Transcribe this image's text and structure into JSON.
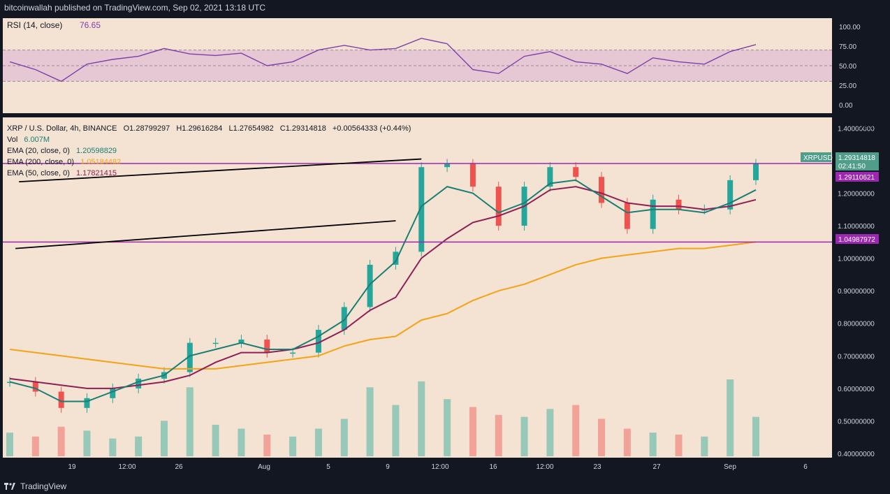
{
  "header": {
    "publisher_text": "bitcoinwallah published on TradingView.com, Sep 02, 2021 13:18 UTC"
  },
  "footer": {
    "brand": "TradingView"
  },
  "colors": {
    "background": "#f4e3d2",
    "frame": "#131722",
    "rsi_line": "#7e3fa8",
    "rsi_band": "#e6c8d4",
    "ema20": "#1b7d73",
    "ema200": "#f5a316",
    "ema50": "#8e1f57",
    "candle_up": "#26a69a",
    "candle_down": "#ef5350",
    "level_line": "#9c27b0",
    "channel_line": "#000000"
  },
  "rsi": {
    "label": "RSI (14, close)",
    "value": "76.65",
    "axis_ticks": [
      "100.00",
      "75.00",
      "50.00",
      "25.00",
      "0.00"
    ],
    "band": [
      30,
      70
    ],
    "range": [
      0,
      100
    ]
  },
  "price_legend": {
    "symbol": "XRP / U.S. Dollar, 4h, BINANCE",
    "open": "O1.28799297",
    "high": "H1.29616284",
    "low": "L1.27654982",
    "close": "C1.29314818",
    "change": "+0.00564333 (+0.44%)",
    "vol_label": "Vol",
    "vol_value": "6.007M",
    "ema20_label": "EMA (20, close, 0)",
    "ema20_value": "1.20598829",
    "ema200_label": "EMA (200, close, 0)",
    "ema200_value": "1.05184482",
    "ema50_label": "EMA (50, close, 0)",
    "ema50_value": "1.17821415"
  },
  "price_axis": {
    "currency": "USD",
    "ticks": [
      "1.40000000",
      "1.20000000",
      "1.10000000",
      "1.00000000",
      "0.90000000",
      "0.80000000",
      "0.70000000",
      "0.60000000",
      "0.50000000",
      "0.40000000"
    ],
    "tags": {
      "xrpusd_label": "XRPUSD",
      "last_price": "1.29314818",
      "countdown": "02:41:50",
      "upper_level": "1.29110621",
      "lower_level": "1.04987972"
    }
  },
  "time_axis": {
    "labels": [
      "19",
      "12:00",
      "26",
      "Aug",
      "5",
      "9",
      "12:00",
      "16",
      "12:00",
      "23",
      "27",
      "Sep",
      "6"
    ]
  },
  "chart_data": {
    "type": "line",
    "title": "",
    "ylim": [
      0.4,
      1.42
    ],
    "horizontal_levels": [
      1.29110621,
      1.04987972
    ],
    "channel": {
      "upper": [
        [
          "Aug 13",
          1.305
        ],
        [
          "Sep 4",
          1.235
        ]
      ],
      "lower": [
        [
          "Aug 12",
          1.115
        ],
        [
          "Sep 4",
          1.03
        ]
      ]
    },
    "x": [
      "Jul 15",
      "Jul 17",
      "Jul 19",
      "Jul 21",
      "Jul 23",
      "Jul 25",
      "Jul 27",
      "Jul 29",
      "Jul 31",
      "Aug 2",
      "Aug 4",
      "Aug 6",
      "Aug 8",
      "Aug 10",
      "Aug 11",
      "Aug 12",
      "Aug 13",
      "Aug 14",
      "Aug 16",
      "Aug 18",
      "Aug 19",
      "Aug 21",
      "Aug 23",
      "Aug 25",
      "Aug 27",
      "Aug 28",
      "Aug 30",
      "Aug 31",
      "Sep 1",
      "Sep 2"
    ],
    "series": [
      {
        "name": "XRP / U.S. Dollar",
        "values": [
          0.62,
          0.59,
          0.54,
          0.57,
          0.6,
          0.63,
          0.65,
          0.74,
          0.74,
          0.75,
          0.71,
          0.71,
          0.78,
          0.85,
          0.98,
          1.02,
          1.28,
          1.29,
          1.22,
          1.1,
          1.22,
          1.28,
          1.25,
          1.17,
          1.09,
          1.18,
          1.15,
          1.15,
          1.24,
          1.29
        ]
      },
      {
        "name": "EMA (20, close, 0)",
        "values": [
          0.62,
          0.6,
          0.56,
          0.56,
          0.59,
          0.62,
          0.64,
          0.7,
          0.72,
          0.74,
          0.72,
          0.72,
          0.76,
          0.81,
          0.92,
          0.99,
          1.16,
          1.22,
          1.2,
          1.14,
          1.17,
          1.23,
          1.24,
          1.19,
          1.14,
          1.15,
          1.15,
          1.14,
          1.17,
          1.21
        ]
      },
      {
        "name": "EMA (200, close, 0)",
        "values": [
          0.72,
          0.71,
          0.7,
          0.69,
          0.68,
          0.67,
          0.66,
          0.66,
          0.66,
          0.67,
          0.68,
          0.69,
          0.7,
          0.73,
          0.75,
          0.76,
          0.81,
          0.83,
          0.87,
          0.9,
          0.92,
          0.95,
          0.98,
          1.0,
          1.01,
          1.02,
          1.03,
          1.03,
          1.04,
          1.05
        ]
      },
      {
        "name": "EMA (50, close, 0)",
        "values": [
          0.63,
          0.62,
          0.61,
          0.6,
          0.6,
          0.61,
          0.62,
          0.64,
          0.68,
          0.71,
          0.71,
          0.72,
          0.74,
          0.78,
          0.84,
          0.88,
          1.0,
          1.06,
          1.11,
          1.13,
          1.16,
          1.21,
          1.22,
          1.2,
          1.17,
          1.16,
          1.16,
          1.15,
          1.16,
          1.18
        ]
      }
    ],
    "rsi": {
      "name": "RSI (14, close)",
      "values": [
        55,
        45,
        30,
        52,
        58,
        62,
        72,
        65,
        63,
        66,
        50,
        55,
        70,
        76,
        70,
        72,
        85,
        78,
        45,
        40,
        62,
        68,
        55,
        52,
        40,
        60,
        55,
        52,
        68,
        77
      ]
    },
    "volume": [
      1.2,
      1.0,
      1.5,
      1.3,
      0.9,
      1.0,
      1.8,
      3.5,
      1.6,
      1.4,
      1.1,
      1.0,
      1.4,
      1.9,
      3.5,
      2.6,
      3.8,
      2.9,
      2.5,
      2.1,
      2.0,
      2.4,
      2.6,
      1.9,
      1.4,
      1.2,
      1.1,
      1.0,
      3.9,
      2.0
    ]
  }
}
